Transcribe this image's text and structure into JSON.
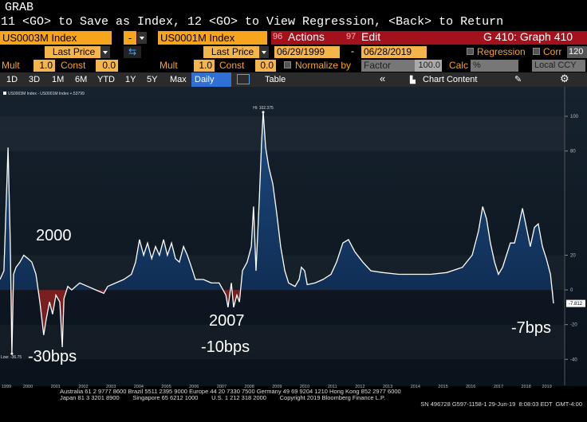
{
  "header": {
    "grab": "GRAB",
    "command": "11 <GO> to Save as Index, 12 <GO> to View Regression, <Back> to Return"
  },
  "toolbar": {
    "ticker_a": "US0003M Index",
    "operator": "-",
    "ticker_b": "US0001M Index",
    "actions_num": "96",
    "actions": "Actions",
    "edit_num": "97",
    "edit": "Edit",
    "graph": "G 410: Graph 410",
    "field_a": "Last Price",
    "field_b": "Last Price",
    "start_date": "06/29/1999",
    "date_sep": "-",
    "end_date": "06/28/2019",
    "regression": "Regression",
    "corr": "Corr",
    "corr_value": "120",
    "mult_label": "Mult",
    "const_label": "Const",
    "mult_a": "1.0",
    "const_a": "0.0",
    "mult_b": "1.0",
    "const_b": "0.0",
    "normalize": "Normalize by",
    "factor": "Factor",
    "factor_value": "100.0",
    "calc": "Calc",
    "calc_value": "%",
    "currency": "Local CCY",
    "periods": [
      "1D",
      "3D",
      "1M",
      "6M",
      "YTD",
      "1Y",
      "5Y",
      "Max"
    ],
    "frequency": "Daily",
    "table": "Table",
    "chart_content": "Chart Content"
  },
  "chart_data": {
    "type": "area",
    "x": [
      1999.49,
      1999.63,
      1999.78,
      1999.86,
      1999.92,
      1999.98,
      2000.07,
      2000.21,
      2000.35,
      2000.5,
      2000.64,
      2000.79,
      2000.93,
      2001.07,
      2001.16,
      2001.28,
      2001.39,
      2001.51,
      2001.65,
      2001.74,
      2001.8,
      2001.94,
      2002.08,
      2002.37,
      2002.66,
      2002.95,
      2003.24,
      2003.38,
      2003.67,
      2003.96,
      2004.24,
      2004.39,
      2004.53,
      2004.68,
      2004.82,
      2004.97,
      2005.11,
      2005.25,
      2005.4,
      2005.54,
      2005.69,
      2005.83,
      2005.97,
      2006.12,
      2006.26,
      2006.41,
      2006.55,
      2006.84,
      2007.13,
      2007.41,
      2007.65,
      2007.73,
      2007.85,
      2007.93,
      2008.05,
      2008.14,
      2008.25,
      2008.42,
      2008.57,
      2008.65,
      2008.74,
      2008.86,
      2008.94,
      2009.0,
      2009.09,
      2009.2,
      2009.35,
      2009.49,
      2009.63,
      2009.78,
      2009.92,
      2010.15,
      2010.3,
      2010.38,
      2010.5,
      2010.59,
      2010.87,
      2011.16,
      2011.45,
      2011.65,
      2011.88,
      2012.08,
      2012.31,
      2012.6,
      2012.89,
      2013.32,
      2013.9,
      2014.48,
      2015.05,
      2015.63,
      2016.2,
      2016.55,
      2016.78,
      2016.93,
      2017.07,
      2017.21,
      2017.36,
      2017.5,
      2017.65,
      2017.79,
      2017.93,
      2018.08,
      2018.22,
      2018.37,
      2018.51,
      2018.65,
      2018.8,
      2018.94,
      2019.09,
      2019.23,
      2019.38,
      2019.49
    ],
    "series": [
      {
        "name": "US0003M Index - US0001M Index +.53799",
        "color": "#ffffff",
        "values": [
          6,
          11,
          82,
          29,
          -36.75,
          9,
          13,
          16,
          20,
          18,
          16,
          9,
          -7,
          -26,
          -17,
          -7,
          -14,
          -3,
          -7,
          -33,
          -5,
          2,
          0,
          4,
          2,
          0,
          -2,
          2,
          4,
          6,
          9,
          16,
          29,
          20,
          27,
          18,
          25,
          20,
          29,
          20,
          27,
          18,
          16,
          25,
          20,
          13,
          6,
          6,
          4,
          4,
          -3,
          -10,
          4,
          -10,
          -3,
          -7,
          11,
          16,
          25,
          48,
          11,
          52,
          84,
          102.375,
          82,
          71,
          61,
          44,
          25,
          11,
          4,
          2,
          6,
          13,
          11,
          3,
          4,
          6,
          9,
          16,
          27,
          29,
          22,
          16,
          11,
          10,
          9,
          9,
          9,
          10,
          13,
          20,
          34,
          48,
          41,
          27,
          16,
          9,
          13,
          20,
          27,
          27,
          36,
          47,
          36,
          25,
          36,
          38,
          25,
          18,
          9,
          -7.812
        ]
      }
    ],
    "xlim": [
      1999.49,
      2019.49
    ],
    "ylim": [
      -55,
      117
    ],
    "xticks": [
      {
        "value": 1999.72,
        "label": "1999"
      },
      {
        "value": 2000.5,
        "label": "2000"
      },
      {
        "value": 2001.5,
        "label": "2001"
      },
      {
        "value": 2002.5,
        "label": "2002"
      },
      {
        "value": 2003.5,
        "label": "2003"
      },
      {
        "value": 2004.5,
        "label": "2004"
      },
      {
        "value": 2005.5,
        "label": "2005"
      },
      {
        "value": 2006.5,
        "label": "2006"
      },
      {
        "value": 2007.5,
        "label": "2007"
      },
      {
        "value": 2008.5,
        "label": "2008"
      },
      {
        "value": 2009.5,
        "label": "2009"
      },
      {
        "value": 2010.5,
        "label": "2010"
      },
      {
        "value": 2011.5,
        "label": "2011"
      },
      {
        "value": 2012.5,
        "label": "2012"
      },
      {
        "value": 2013.5,
        "label": "2013"
      },
      {
        "value": 2014.5,
        "label": "2014"
      },
      {
        "value": 2015.5,
        "label": "2015"
      },
      {
        "value": 2016.5,
        "label": "2016"
      },
      {
        "value": 2017.5,
        "label": "2017"
      },
      {
        "value": 2018.5,
        "label": "2018"
      },
      {
        "value": 2019.25,
        "label": "2019"
      }
    ],
    "yticks": [
      100,
      80,
      20,
      0,
      -20,
      -40
    ],
    "hi_label": "Hi: 102.375",
    "low_label": "Low: -36.75",
    "last_label": "-7.812",
    "positive_color": "#1d4a80",
    "negative_color": "#7a1f1f",
    "annotations": [
      "2000",
      "-30bps",
      "2007",
      "-10bps",
      "-7bps"
    ]
  },
  "footer": {
    "line1": "Australia 61 2 9777 8600 Brazil 5511 2395 9000 Europe 44 20 7330 7500 Germany 49 69 9204 1210 Hong Kong 852 2977 6000",
    "line2": "Japan 81 3 3201 8900        Singapore 65 6212 1000        U.S. 1 212 318 2000        Copyright 2019 Bloomberg Finance L.P.",
    "line3": "SN 496728 G597-1158-1 29-Jun-19  8:08:03 EDT  GMT-4:00"
  }
}
